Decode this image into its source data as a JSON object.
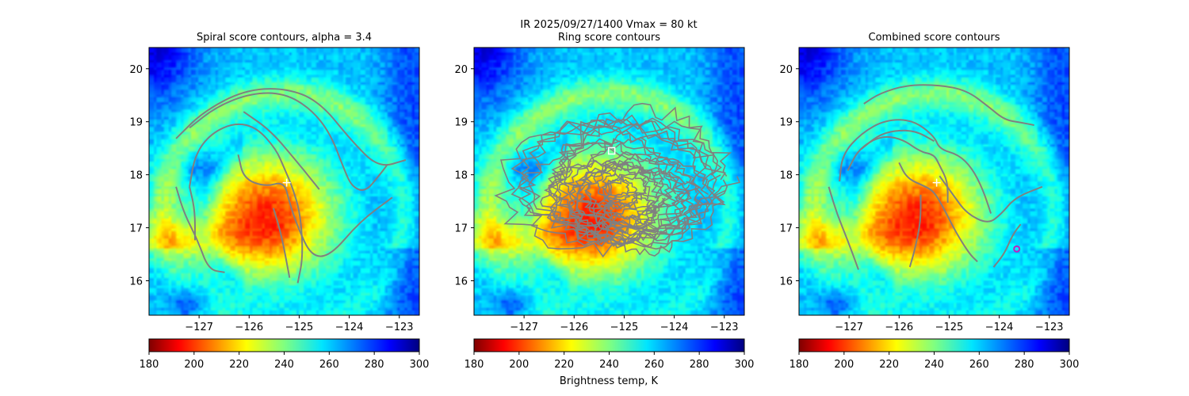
{
  "suptitle": {
    "line1": "IR  2025/09/27/1400    Vmax = 80 kt"
  },
  "colorbar_label": "Brightness temp, K",
  "chart_data": [
    {
      "type": "heatmap",
      "title": "Spiral score contours, alpha =  3.4",
      "xlim": [
        -128.0,
        -122.6
      ],
      "ylim": [
        15.35,
        20.4
      ],
      "xticks": [
        -127,
        -126,
        -125,
        -124,
        -123
      ],
      "yticks": [
        16,
        17,
        18,
        19,
        20
      ],
      "colorbar": {
        "cmap": "jet_r",
        "range": [
          180,
          300
        ],
        "ticks": [
          180,
          200,
          220,
          240,
          260,
          280,
          300
        ]
      },
      "center_marker": {
        "symbol": "+",
        "lon": -125.25,
        "lat": 17.85
      },
      "contours": "spiral"
    },
    {
      "type": "heatmap",
      "title": "Ring score contours",
      "xlim": [
        -128.0,
        -122.6
      ],
      "ylim": [
        15.35,
        20.4
      ],
      "xticks": [
        -127,
        -126,
        -125,
        -124,
        -123
      ],
      "yticks": [
        16,
        17,
        18,
        19,
        20
      ],
      "colorbar": {
        "cmap": "jet_r",
        "range": [
          180,
          300
        ],
        "ticks": [
          180,
          200,
          220,
          240,
          260,
          280,
          300
        ]
      },
      "center_marker": {
        "symbol": "square",
        "lon": -125.25,
        "lat": 18.45
      },
      "contours": "ring"
    },
    {
      "type": "heatmap",
      "title": "Combined score contours",
      "xlim": [
        -128.0,
        -122.6
      ],
      "ylim": [
        15.35,
        20.4
      ],
      "xticks": [
        -127,
        -126,
        -125,
        -124,
        -123
      ],
      "yticks": [
        16,
        17,
        18,
        19,
        20
      ],
      "colorbar": {
        "cmap": "jet_r",
        "range": [
          180,
          300
        ],
        "ticks": [
          180,
          200,
          220,
          240,
          260,
          280,
          300
        ]
      },
      "center_marker": {
        "symbol": "+",
        "lon": -125.25,
        "lat": 17.85
      },
      "extra_marker": {
        "symbol": "circle",
        "color": "#c020c0",
        "lon": -123.65,
        "lat": 16.6
      },
      "contours": "combined"
    }
  ]
}
